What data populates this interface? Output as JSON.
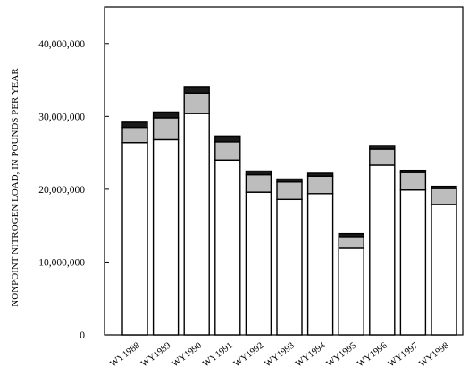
{
  "chart_data": {
    "type": "bar",
    "stacked": true,
    "title": "",
    "xlabel": "",
    "ylabel": "NONPOINT NITROGEN LOAD, IN POUNDS PER YEAR",
    "ylim": [
      0,
      45000000
    ],
    "yticks": [
      0,
      10000000,
      20000000,
      30000000,
      40000000
    ],
    "ytick_labels": [
      "0",
      "10,000,000",
      "20,000,000",
      "30,000,000",
      "40,000,000"
    ],
    "categories": [
      "WY1988",
      "WY1989",
      "WY1990",
      "WY1991",
      "WY1992",
      "WY1993",
      "WY1994",
      "WY1995",
      "WY1996",
      "WY1997",
      "WY1998"
    ],
    "series": [
      {
        "values": [
          26400000,
          26800000,
          30400000,
          24000000,
          19600000,
          18600000,
          19400000,
          11900000,
          23300000,
          19900000,
          17900000
        ],
        "color": "#ffffff"
      },
      {
        "values": [
          2100000,
          3000000,
          2800000,
          2500000,
          2400000,
          2400000,
          2400000,
          1600000,
          2200000,
          2400000,
          2200000
        ],
        "color": "#bdbdbd"
      },
      {
        "values": [
          700000,
          800000,
          900000,
          800000,
          500000,
          400000,
          400000,
          400000,
          500000,
          300000,
          300000
        ],
        "color": "#1a1a1a"
      }
    ]
  }
}
